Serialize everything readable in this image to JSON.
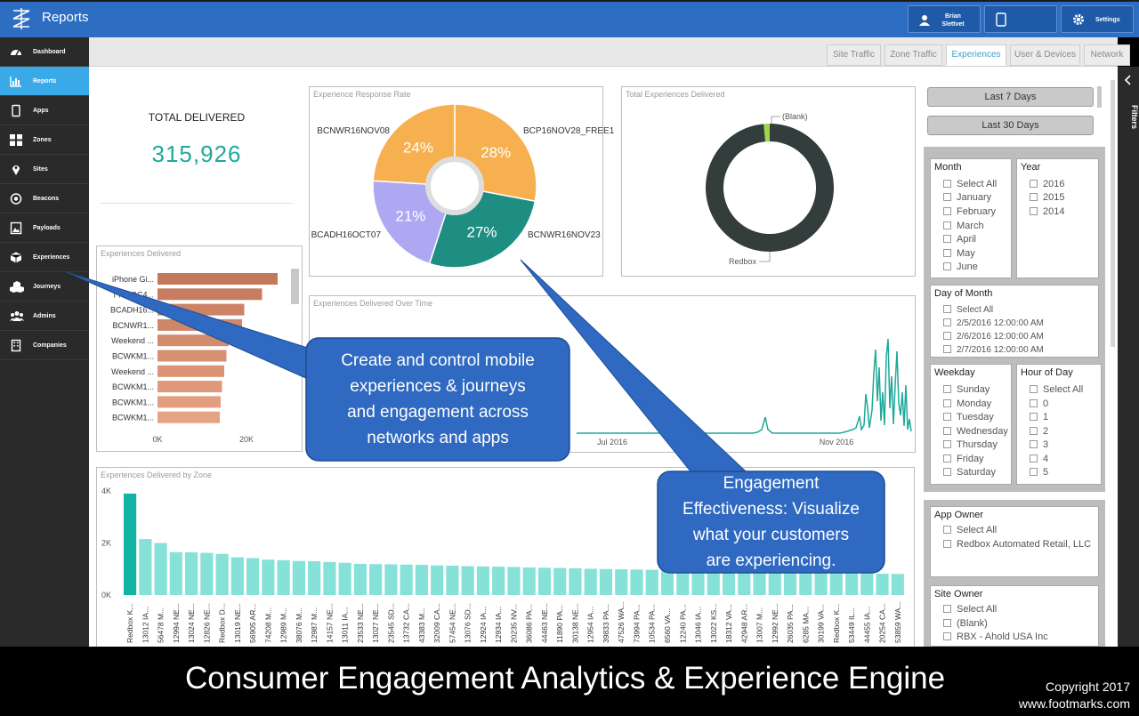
{
  "header": {
    "app_title": "Reports",
    "user_first": "Brian",
    "user_last": "Slettvet",
    "settings_label": "Settings"
  },
  "sidebar": {
    "items": [
      {
        "label": "Dashboard",
        "icon": "dashboard-icon"
      },
      {
        "label": "Reports",
        "icon": "bar-chart-icon",
        "active": true
      },
      {
        "label": "Apps",
        "icon": "phone-icon"
      },
      {
        "label": "Zones",
        "icon": "grid-icon"
      },
      {
        "label": "Sites",
        "icon": "map-pin-icon"
      },
      {
        "label": "Beacons",
        "icon": "beacon-icon"
      },
      {
        "label": "Payloads",
        "icon": "image-icon"
      },
      {
        "label": "Experiences",
        "icon": "cube-icon"
      },
      {
        "label": "Journeys",
        "icon": "cubes-icon"
      },
      {
        "label": "Admins",
        "icon": "users-icon"
      },
      {
        "label": "Companies",
        "icon": "building-icon"
      }
    ]
  },
  "tabs": [
    "Site Traffic",
    "Zone Traffic",
    "Experiences",
    "User & Devices",
    "Network"
  ],
  "active_tab": "Experiences",
  "total_delivered": {
    "label": "TOTAL DELIVERED",
    "value": "315,926",
    "color": "#1fa99a"
  },
  "response_rate": {
    "title": "Experience Response Rate",
    "chart_data": {
      "type": "pie",
      "labels": [
        "BCP16NOV28_FREE1",
        "BCNWR16NOV23",
        "BCADH16OCT07",
        "BCNWR16NOV08"
      ],
      "values": [
        28,
        27,
        21,
        24
      ],
      "display": [
        "28%",
        "27%",
        "21%",
        "24%"
      ],
      "colors": [
        "#f7b050",
        "#1f8e82",
        "#aea8f3",
        "#f7b050"
      ]
    }
  },
  "total_experiences": {
    "title": "Total Experiences Delivered",
    "chart_data": {
      "type": "pie",
      "labels": [
        "Redbox",
        "(Blank)"
      ],
      "values": [
        98.5,
        1.5
      ],
      "colors": [
        "#333d3b",
        "#9fd44b"
      ]
    }
  },
  "experiences_delivered": {
    "title": "Experiences Delivered",
    "chart_data": {
      "type": "bar",
      "orientation": "horizontal",
      "categories": [
        "iPhone Gi...",
        "TT16OC4...",
        "BCADH16...",
        "BCNWR1...",
        "Weekend ...",
        "BCWKM1...",
        "Weekend ...",
        "BCWKM1...",
        "BCWKM1...",
        "BCWKM1..."
      ],
      "values": [
        27000,
        23500,
        19500,
        19000,
        16000,
        15500,
        15000,
        14500,
        14200,
        14000
      ],
      "xticks": [
        "0K",
        "20K"
      ],
      "xlim": [
        0,
        30000
      ]
    }
  },
  "over_time": {
    "title": "Experiences Delivered Over Time",
    "chart_data": {
      "type": "line",
      "xticks": [
        "Jul 2016",
        "Nov 2016"
      ],
      "color": "#1fa99a"
    }
  },
  "by_zone": {
    "title": "Experiences Delivered by Zone",
    "chart_data": {
      "type": "bar",
      "categories": [
        "Redbox K...",
        "13012 IA...",
        "56478 M...",
        "12994 NE...",
        "13024 NE...",
        "12826 NE...",
        "Redbox D...",
        "13019 NE...",
        "56905 AR...",
        "74208 M...",
        "12989 M...",
        "38076 M...",
        "12987 M...",
        "14157 NE...",
        "13011 IA...",
        "23533 NE...",
        "13027 NE...",
        "23545 SD...",
        "13732 CA...",
        "43383 M...",
        "32009 CA...",
        "57454 NE...",
        "13076 SD...",
        "12924 IA...",
        "12934 IA...",
        "20235 NV...",
        "36086 PA...",
        "44463 NE...",
        "11890 PA...",
        "30138 NE...",
        "12954 IA...",
        "39833 PA...",
        "47526 WA...",
        "73994 PA...",
        "10534 PA...",
        "6560 VA...",
        "12240 PA...",
        "13046 IA...",
        "13022 KS...",
        "18312 VA...",
        "42948 AR...",
        "13007 M...",
        "12992 NE...",
        "26035 PA...",
        "6285 MA...",
        "30199 VA...",
        "Redbox K...",
        "53449 IL...",
        "44455 IA...",
        "20254 CA...",
        "53859 WA..."
      ],
      "values": [
        3900,
        2150,
        2000,
        1650,
        1640,
        1620,
        1580,
        1450,
        1420,
        1360,
        1340,
        1310,
        1300,
        1270,
        1240,
        1200,
        1190,
        1180,
        1170,
        1160,
        1140,
        1130,
        1110,
        1100,
        1090,
        1080,
        1060,
        1050,
        1040,
        1030,
        1010,
        1000,
        990,
        980,
        970,
        960,
        950,
        940,
        930,
        920,
        910,
        900,
        890,
        880,
        870,
        860,
        850,
        840,
        830,
        820,
        810
      ],
      "yticks": [
        "0K",
        "2K",
        "4K"
      ],
      "ylim": [
        0,
        4000
      ],
      "highlight_color": "#13b3a4",
      "color": "#86e1d8"
    }
  },
  "filters": {
    "label": "Filters",
    "last7": "Last 7 Days",
    "last30": "Last 30 Days",
    "month": {
      "title": "Month",
      "options": [
        "Select All",
        "January",
        "February",
        "March",
        "April",
        "May",
        "June"
      ]
    },
    "year": {
      "title": "Year",
      "options": [
        "2016",
        "2015",
        "2014"
      ]
    },
    "day_of_month": {
      "title": "Day of Month",
      "options": [
        "Select All",
        "2/5/2016 12:00:00 AM",
        "2/6/2016 12:00:00 AM",
        "2/7/2016 12:00:00 AM"
      ]
    },
    "weekday": {
      "title": "Weekday",
      "options": [
        "Sunday",
        "Monday",
        "Tuesday",
        "Wednesday",
        "Thursday",
        "Friday",
        "Saturday"
      ]
    },
    "hour": {
      "title": "Hour of Day",
      "options": [
        "Select All",
        "0",
        "1",
        "2",
        "3",
        "4",
        "5"
      ]
    },
    "app_owner": {
      "title": "App Owner",
      "options": [
        "Select All",
        "Redbox Automated Retail, LLC"
      ]
    },
    "site_owner": {
      "title": "Site Owner",
      "options": [
        "Select All",
        "(Blank)",
        "RBX - Ahold USA Inc"
      ]
    }
  },
  "callouts": {
    "left": [
      "Create and control mobile",
      "experiences & journeys",
      "and engagement across",
      "networks and apps"
    ],
    "right": [
      "Engagement",
      "Effectiveness: Visualize",
      "what your customers",
      "are experiencing."
    ],
    "color": "#2f69c1"
  },
  "caption": "Consumer Engagement Analytics & Experience Engine",
  "copyright": [
    "Copyright 2017",
    "www.footmarks.com"
  ]
}
